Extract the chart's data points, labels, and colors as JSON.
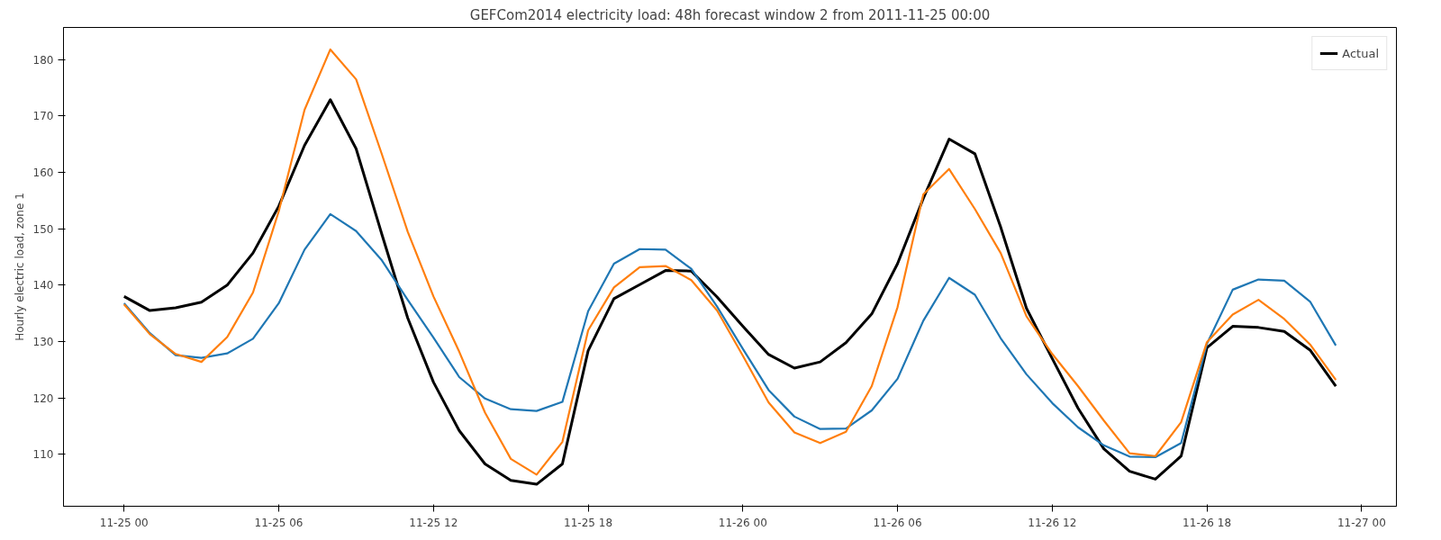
{
  "chart_data": {
    "type": "line",
    "title": "GEFCom2014 electricity load: 48h forecast window 2 from 2011-11-25 00:00",
    "ylabel": "Hourly electric load, zone 1",
    "x": [
      "2011-11-25T00:00",
      "2011-11-25T01:00",
      "2011-11-25T02:00",
      "2011-11-25T03:00",
      "2011-11-25T04:00",
      "2011-11-25T05:00",
      "2011-11-25T06:00",
      "2011-11-25T07:00",
      "2011-11-25T08:00",
      "2011-11-25T09:00",
      "2011-11-25T10:00",
      "2011-11-25T11:00",
      "2011-11-25T12:00",
      "2011-11-25T13:00",
      "2011-11-25T14:00",
      "2011-11-25T15:00",
      "2011-11-25T16:00",
      "2011-11-25T17:00",
      "2011-11-25T18:00",
      "2011-11-25T19:00",
      "2011-11-25T20:00",
      "2011-11-25T21:00",
      "2011-11-25T22:00",
      "2011-11-25T23:00",
      "2011-11-26T00:00",
      "2011-11-26T01:00",
      "2011-11-26T02:00",
      "2011-11-26T03:00",
      "2011-11-26T04:00",
      "2011-11-26T05:00",
      "2011-11-26T06:00",
      "2011-11-26T07:00",
      "2011-11-26T08:00",
      "2011-11-26T09:00",
      "2011-11-26T10:00",
      "2011-11-26T11:00",
      "2011-11-26T12:00",
      "2011-11-26T13:00",
      "2011-11-26T14:00",
      "2011-11-26T15:00",
      "2011-11-26T16:00",
      "2011-11-26T17:00",
      "2011-11-26T18:00",
      "2011-11-26T19:00",
      "2011-11-26T20:00",
      "2011-11-26T21:00",
      "2011-11-26T22:00",
      "2011-11-26T23:00"
    ],
    "series": [
      {
        "name": "Actual",
        "color": "#000000",
        "values": [
          138,
          135.5,
          136,
          137,
          140,
          145.7,
          154,
          164.8,
          172.9,
          164.2,
          149,
          134.2,
          122.8,
          114.2,
          108.3,
          105.4,
          104.7,
          108.3,
          128.4,
          137.6,
          140.1,
          142.6,
          142.5,
          137.9,
          132.7,
          127.7,
          125.3,
          126.4,
          129.8,
          134.9,
          143.8,
          155.4,
          165.9,
          163.3,
          150.3,
          135.9,
          127,
          118.2,
          111,
          107,
          105.6,
          109.7,
          128.9,
          132.7,
          132.5,
          131.8,
          128.5,
          122.1
        ]
      },
      {
        "color": "#1f77b4",
        "values": [
          136.8,
          131.5,
          127.6,
          127.1,
          127.9,
          130.5,
          136.8,
          146.3,
          152.6,
          149.6,
          144.4,
          137.4,
          130.7,
          123.7,
          119.9,
          118,
          117.7,
          119.3,
          135.4,
          143.8,
          146.4,
          146.3,
          142.9,
          136.2,
          128.7,
          121.4,
          116.7,
          114.5,
          114.6,
          117.8,
          123.4,
          133.7,
          141.3,
          138.3,
          130.6,
          124.2,
          119.1,
          114.8,
          111.6,
          109.6,
          109.5,
          112,
          129.6,
          139.2,
          141,
          140.8,
          137.1,
          129.3
        ]
      },
      {
        "color": "#ff7f0e",
        "values": [
          136.6,
          131.3,
          127.8,
          126.4,
          130.8,
          138.7,
          153.1,
          171.1,
          181.8,
          176.5,
          163.2,
          149.5,
          138,
          128.2,
          117.4,
          109.2,
          106.4,
          112.2,
          132,
          139.6,
          143.2,
          143.4,
          140.9,
          135.5,
          127.5,
          119.2,
          113.9,
          112,
          114,
          122.1,
          136.1,
          156.1,
          160.6,
          153.5,
          145.7,
          134.5,
          127.8,
          122.1,
          116,
          110.2,
          109.7,
          115.7,
          129.9,
          134.8,
          137.4,
          134,
          129.5,
          123.2
        ]
      }
    ],
    "xlim": [
      "2011-11-24T21:39",
      "2011-11-27T01:21"
    ],
    "ylim": [
      100.8,
      185.7
    ],
    "xticks": [
      {
        "value": "2011-11-25T00:00",
        "label": "11-25 00"
      },
      {
        "value": "2011-11-25T06:00",
        "label": "11-25 06"
      },
      {
        "value": "2011-11-25T12:00",
        "label": "11-25 12"
      },
      {
        "value": "2011-11-25T18:00",
        "label": "11-25 18"
      },
      {
        "value": "2011-11-26T00:00",
        "label": "11-26 00"
      },
      {
        "value": "2011-11-26T06:00",
        "label": "11-26 06"
      },
      {
        "value": "2011-11-26T12:00",
        "label": "11-26 12"
      },
      {
        "value": "2011-11-26T18:00",
        "label": "11-26 18"
      },
      {
        "value": "2011-11-27T00:00",
        "label": "11-27 00"
      }
    ],
    "yticks": [
      110,
      120,
      130,
      140,
      150,
      160,
      170,
      180
    ],
    "grid": false,
    "legend": "top right",
    "line_style": "solid"
  }
}
